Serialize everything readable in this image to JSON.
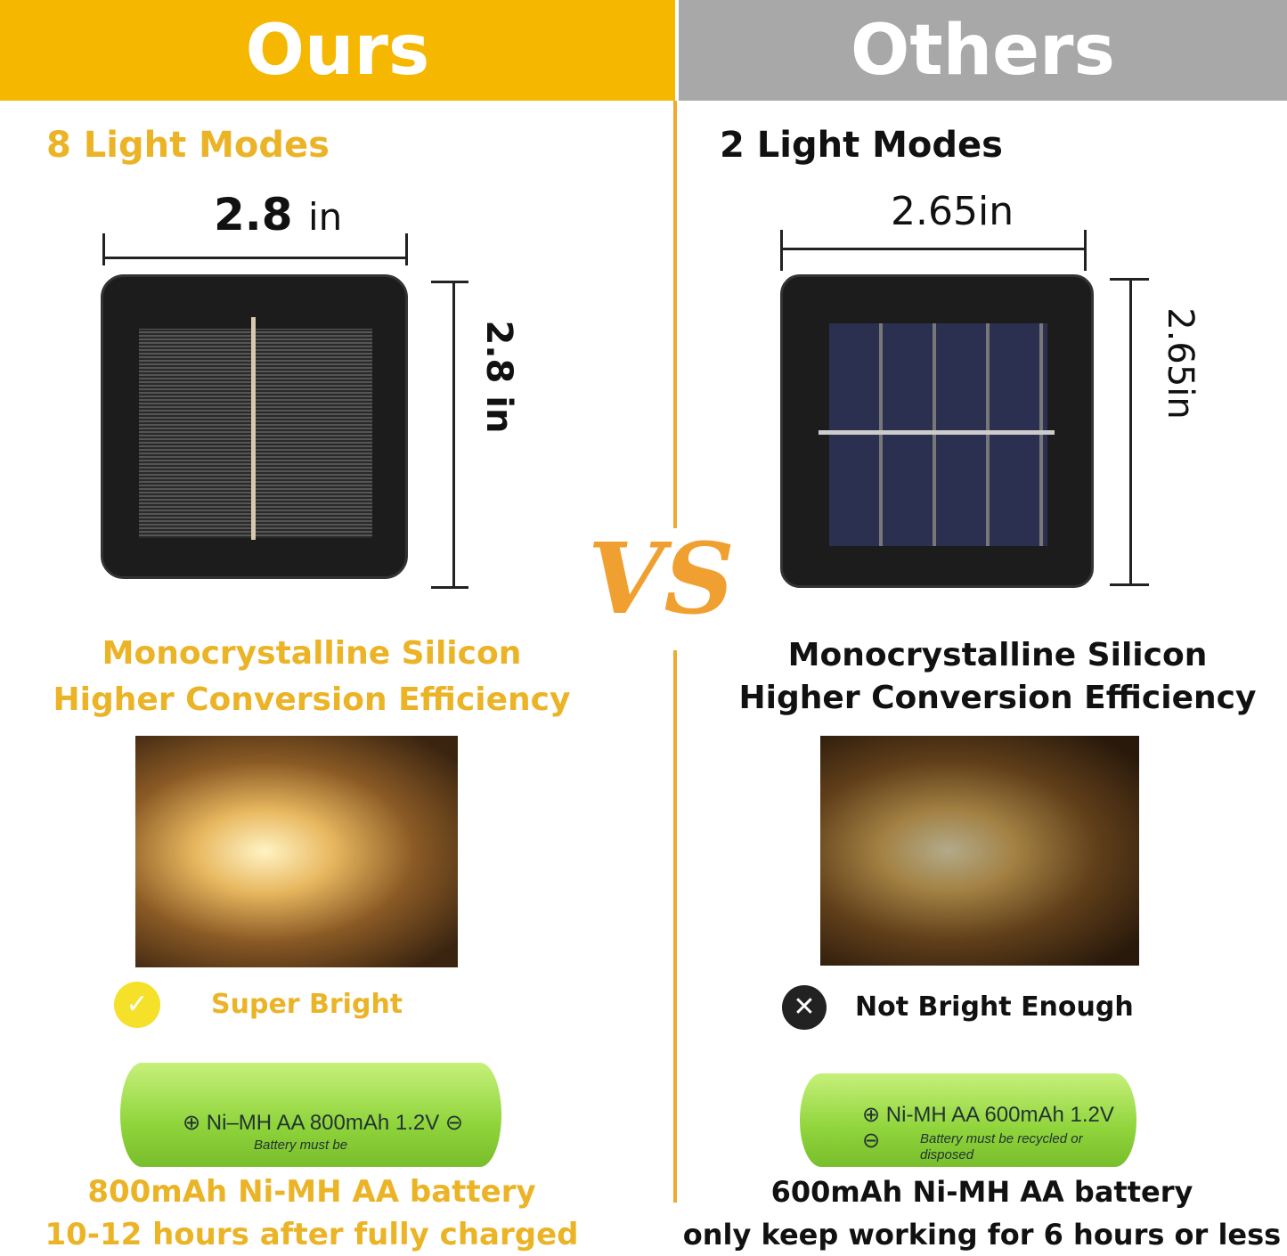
{
  "ours": {
    "header": "Ours",
    "modes": "8 Light Modes",
    "width_value": "2.8",
    "width_unit": "in",
    "height_label": "2.8 in",
    "silicon_line1": "Monocrystalline Silicon",
    "silicon_line2": "Higher Conversion Efficiency",
    "status_icon": "check-circle-icon",
    "status": "Super Bright",
    "battery_print": "⊕ Ni–MH  AA  800mAh 1.2V ⊖",
    "battery_print_sub": "Battery must be",
    "battery_line1": "800mAh Ni-MH AA battery",
    "battery_line2": "10-12 hours after fully charged"
  },
  "others": {
    "header": "Others",
    "modes": "2 Light Modes",
    "width_label": "2.65in",
    "height_label": "2.65in",
    "silicon_line1": "Monocrystalline Silicon",
    "silicon_line2": "Higher Conversion Efficiency",
    "status_icon": "x-circle-icon",
    "status": "Not Bright Enough",
    "battery_print": "⊕ Ni-MH  AA 600mAh 1.2V ⊖",
    "battery_print_sub": "Battery must be recycled or disposed",
    "battery_line1": "600mAh Ni-MH AA battery",
    "battery_line2": "only keep working for 6 hours or less"
  },
  "vs": "VS",
  "colors": {
    "ours_header": "#f5b700",
    "others_header": "#a8a8a8",
    "gold_text": "#ebb326",
    "vs": "#f0a030"
  }
}
